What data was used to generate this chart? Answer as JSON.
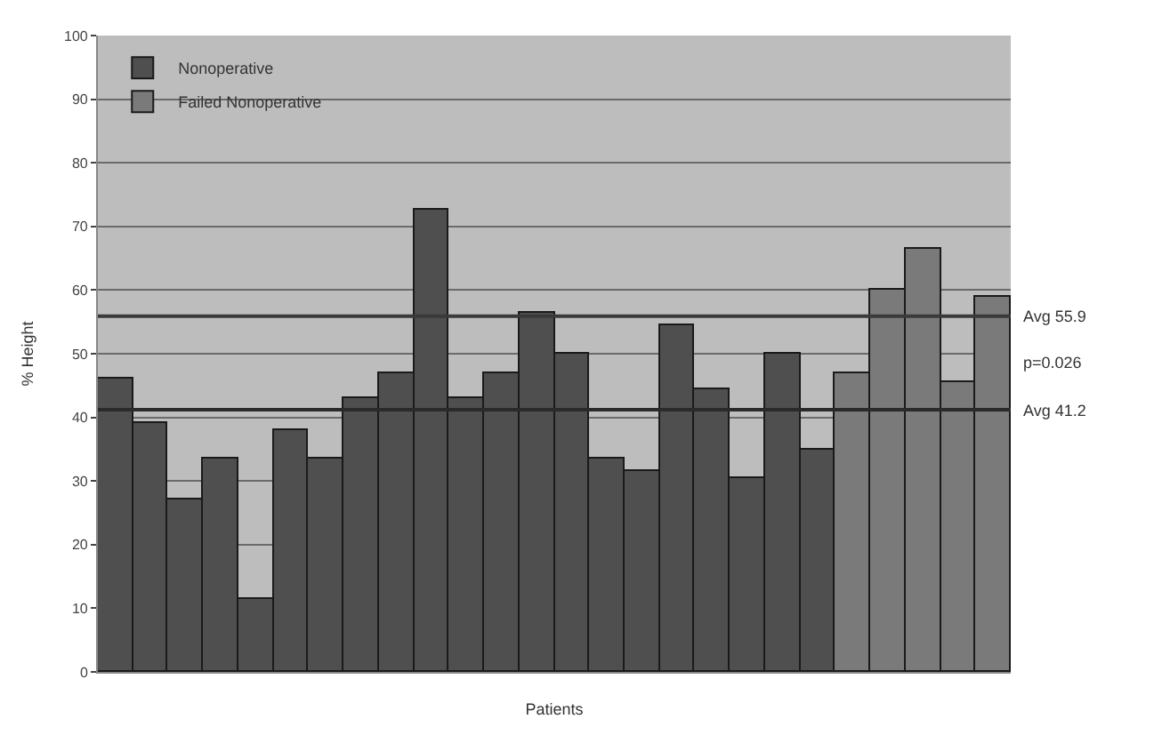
{
  "chart_data": {
    "type": "bar",
    "xlabel": "Patients",
    "ylabel": "% Height",
    "categories": [
      null,
      null,
      null,
      null,
      null,
      null,
      null,
      null,
      null,
      null,
      null,
      null,
      null,
      null,
      null,
      null,
      null,
      null,
      null,
      null,
      null,
      null,
      null,
      null,
      null,
      null
    ],
    "series": [
      {
        "name": "Nonoperative",
        "color": "#4f4f4f",
        "values": [
          46,
          39,
          27,
          33.5,
          11.5,
          38,
          33.5,
          43,
          47,
          72.5,
          43,
          47,
          56.5,
          50,
          33.5,
          31.5,
          54.5,
          44.5,
          30.5,
          50,
          35,
          null,
          null,
          null,
          null,
          null
        ]
      },
      {
        "name": "Failed Nonoperative",
        "color": "#7a7a7a",
        "values": [
          null,
          null,
          null,
          null,
          null,
          null,
          null,
          null,
          null,
          null,
          null,
          null,
          null,
          null,
          null,
          null,
          null,
          null,
          null,
          null,
          null,
          47,
          60,
          66.5,
          45.5,
          59
        ]
      }
    ],
    "ylim": [
      0,
      100
    ],
    "yticks": [
      0,
      10,
      20,
      30,
      40,
      50,
      60,
      70,
      80,
      90,
      100
    ],
    "ref_lines": [
      {
        "axis": "y",
        "value": 55.9,
        "label": "Avg 55.9",
        "color": "#3a3a3a"
      },
      {
        "axis": "y",
        "value": 41.2,
        "label": "Avg 41.2",
        "color": "#2a2a2a"
      }
    ],
    "annotations": [
      "p=0.026"
    ],
    "grid": "y",
    "legend": "top left"
  }
}
